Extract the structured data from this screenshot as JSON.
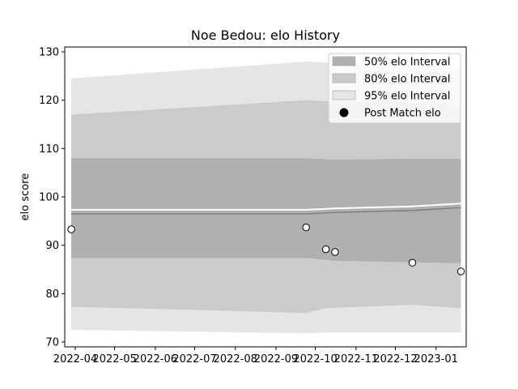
{
  "chart_data": {
    "type": "line",
    "title": "Noe Bedou: elo History",
    "ylabel": "elo score",
    "xlabel": "",
    "ylim": [
      69,
      131
    ],
    "xlim": [
      "2022-03-24",
      "2023-01-24"
    ],
    "y_ticks": [
      70,
      80,
      90,
      100,
      110,
      120,
      130
    ],
    "x_ticks": [
      "2022-04-01",
      "2022-05-01",
      "2022-06-01",
      "2022-07-01",
      "2022-08-01",
      "2022-09-01",
      "2022-10-01",
      "2022-11-01",
      "2022-12-01",
      "2023-01-01"
    ],
    "x_tick_labels": [
      "2022-04",
      "2022-05",
      "2022-06",
      "2022-07",
      "2022-08",
      "2022-09",
      "2022-10",
      "2022-11",
      "2022-12",
      "2023-01"
    ],
    "grid": false,
    "legend_position": "top-right",
    "legend": {
      "band50": "50% elo Interval",
      "band80": "80% elo Interval",
      "band95": "95% elo Interval",
      "points": "Post Match elo"
    },
    "colors": {
      "band50": "#b0b0b0",
      "band80": "#cbcbcb",
      "band95": "#e5e5e5",
      "mean_line": "#808080",
      "points_fill": "#ffffff",
      "points_edge": "#000000"
    },
    "dates": [
      "2022-03-29",
      "2022-09-24",
      "2022-10-09",
      "2022-10-16",
      "2022-12-14",
      "2023-01-20"
    ],
    "mean": [
      96.5,
      96.5,
      96.7,
      96.8,
      97.2,
      97.8
    ],
    "band50": {
      "lower": [
        87.4,
        87.4,
        87.0,
        86.8,
        86.5,
        86.3
      ],
      "upper": [
        108.0,
        108.0,
        107.8,
        107.7,
        107.9,
        107.9
      ]
    },
    "band80": {
      "lower": [
        77.3,
        76.0,
        77.0,
        77.1,
        77.7,
        77.0
      ],
      "upper": [
        117.0,
        120.0,
        119.8,
        119.7,
        119.5,
        119.0
      ]
    },
    "band95": {
      "lower": [
        72.5,
        71.8,
        72.0,
        72.0,
        72.0,
        72.0
      ],
      "upper": [
        124.5,
        128.0,
        127.8,
        127.7,
        127.3,
        126.5
      ]
    },
    "post_match": [
      93.3,
      93.7,
      89.2,
      88.6,
      86.4,
      84.6
    ]
  }
}
